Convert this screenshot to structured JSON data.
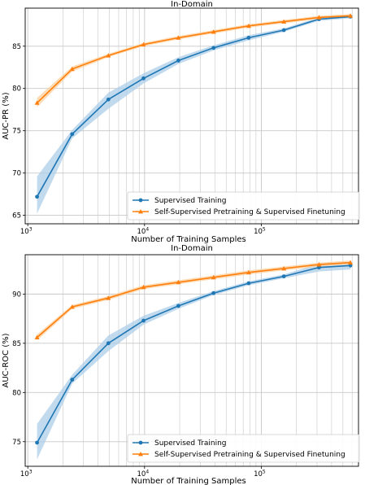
{
  "colors": {
    "supervised": "#1f77b4",
    "self_supervised": "#ff7f0e",
    "band_supervised": "#aecde8",
    "band_self_supervised": "#ffcf99",
    "grid": "#c8c8c8"
  },
  "chart_data": [
    {
      "type": "line",
      "title": "In-Domain",
      "xlabel": "Number of Training Samples",
      "ylabel": "AUC-PR (%)",
      "xscale": "log",
      "xlim": [
        950,
        680000
      ],
      "ylim": [
        64,
        89.5
      ],
      "grid": true,
      "legend": "lower-right",
      "x": [
        1200,
        2400,
        4900,
        9800,
        19500,
        39000,
        78000,
        156000,
        312000,
        580000
      ],
      "xticks": [
        {
          "value": 1000,
          "base": "10",
          "exp": "3"
        },
        {
          "value": 10000,
          "base": "10",
          "exp": "4"
        },
        {
          "value": 100000,
          "base": "10",
          "exp": "5"
        }
      ],
      "yticks": [
        65,
        70,
        75,
        80,
        85
      ],
      "series": [
        {
          "name": "Supervised Training",
          "color": "#1f77b4",
          "marker": "circle",
          "values": [
            67.2,
            74.6,
            78.7,
            81.2,
            83.3,
            84.8,
            86.0,
            86.9,
            88.2,
            88.5
          ],
          "lower": [
            65.2,
            74.1,
            77.6,
            80.6,
            82.9,
            84.5,
            85.7,
            86.7,
            88.0,
            88.3
          ],
          "upper": [
            69.6,
            75.1,
            79.5,
            81.8,
            83.7,
            85.1,
            86.3,
            87.1,
            88.4,
            88.7
          ]
        },
        {
          "name": "Self-Supervised Pretraining & Supervised Finetuning",
          "color": "#ff7f0e",
          "marker": "triangle",
          "values": [
            78.3,
            82.3,
            83.9,
            85.2,
            86.0,
            86.7,
            87.4,
            87.9,
            88.4,
            88.6
          ],
          "lower": [
            77.8,
            82.0,
            83.7,
            85.0,
            85.8,
            86.5,
            87.2,
            87.7,
            88.2,
            88.4
          ],
          "upper": [
            78.9,
            82.6,
            84.1,
            85.4,
            86.2,
            86.9,
            87.6,
            88.1,
            88.6,
            88.8
          ]
        }
      ]
    },
    {
      "type": "line",
      "title": "In-Domain",
      "xlabel": "Number of Training Samples",
      "ylabel": "AUC-ROC (%)",
      "xscale": "log",
      "xlim": [
        950,
        680000
      ],
      "ylim": [
        72.5,
        94
      ],
      "grid": true,
      "legend": "lower-right",
      "x": [
        1200,
        2400,
        4900,
        9800,
        19500,
        39000,
        78000,
        156000,
        312000,
        580000
      ],
      "xticks": [
        {
          "value": 1000,
          "base": "10",
          "exp": "3"
        },
        {
          "value": 10000,
          "base": "10",
          "exp": "4"
        },
        {
          "value": 100000,
          "base": "10",
          "exp": "5"
        }
      ],
      "yticks": [
        75,
        80,
        85,
        90
      ],
      "series": [
        {
          "name": "Supervised Training",
          "color": "#1f77b4",
          "marker": "circle",
          "values": [
            74.9,
            81.3,
            85.0,
            87.3,
            88.8,
            90.1,
            91.1,
            91.8,
            92.7,
            92.9
          ],
          "lower": [
            73.2,
            80.9,
            84.2,
            86.9,
            88.5,
            89.9,
            90.9,
            91.6,
            92.3,
            92.5
          ],
          "upper": [
            76.8,
            81.8,
            85.8,
            87.8,
            89.1,
            90.3,
            91.3,
            92.0,
            93.1,
            93.3
          ]
        },
        {
          "name": "Self-Supervised Pretraining & Supervised Finetuning",
          "color": "#ff7f0e",
          "marker": "triangle",
          "values": [
            85.6,
            88.7,
            89.6,
            90.7,
            91.2,
            91.7,
            92.2,
            92.6,
            93.0,
            93.2
          ],
          "lower": [
            85.3,
            88.5,
            89.4,
            90.5,
            91.0,
            91.5,
            92.0,
            92.4,
            92.8,
            93.0
          ],
          "upper": [
            85.9,
            88.9,
            89.8,
            90.9,
            91.4,
            91.9,
            92.4,
            92.8,
            93.2,
            93.4
          ]
        }
      ]
    }
  ]
}
